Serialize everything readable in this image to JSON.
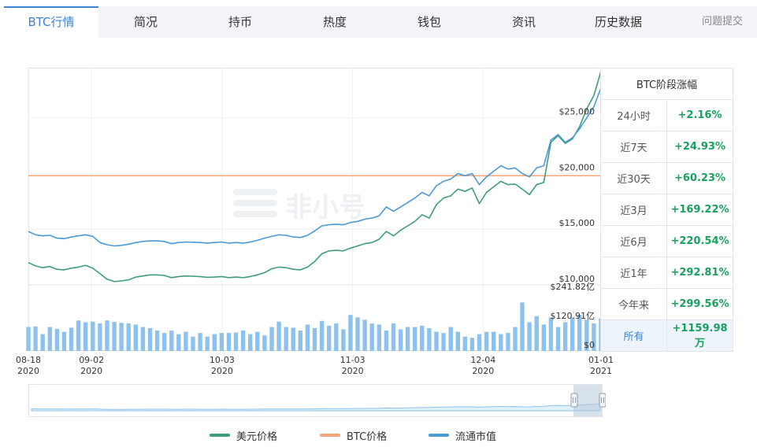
{
  "tabs": [
    {
      "label": "BTC行情",
      "active": true
    },
    {
      "label": "简况"
    },
    {
      "label": "持币"
    },
    {
      "label": "热度"
    },
    {
      "label": "钱包"
    },
    {
      "label": "资讯"
    },
    {
      "label": "历史数据"
    }
  ],
  "feedback_label": "问题提交",
  "watermark": "非小号",
  "performance": {
    "title": "BTC阶段涨幅",
    "rows": [
      {
        "period": "24小时",
        "change": "+2.16%"
      },
      {
        "period": "近7天",
        "change": "+24.93%"
      },
      {
        "period": "近30天",
        "change": "+60.23%"
      },
      {
        "period": "近3月",
        "change": "+169.22%"
      },
      {
        "period": "近6月",
        "change": "+220.54%"
      },
      {
        "period": "近1年",
        "change": "+292.81%"
      },
      {
        "period": "今年来",
        "change": "+299.56%"
      },
      {
        "period": "所有",
        "change": "+1159.98万",
        "selected": true
      }
    ],
    "change_color": "#19a15f"
  },
  "chart_data": {
    "type": "line",
    "x_tick_labels": [
      [
        "08-18",
        "2020"
      ],
      [
        "09-02",
        "2020"
      ],
      [
        "10-03",
        "2020"
      ],
      [
        "11-03",
        "2020"
      ],
      [
        "12-04",
        "2020"
      ],
      [
        "01-01",
        "2021"
      ]
    ],
    "x_tick_days": [
      0,
      15,
      46,
      77,
      108,
      136
    ],
    "y_ticks": [
      "$10,000",
      "$15,000",
      "$20,000",
      "$25,000"
    ],
    "y_tick_values": [
      10000,
      15000,
      20000,
      25000
    ],
    "ylim": [
      10000,
      29500
    ],
    "volume_ticks": [
      "$0",
      "$120.91亿",
      "$241.82亿"
    ],
    "volume_tick_values": [
      0,
      120.91,
      241.82
    ],
    "volume_ylim": [
      0,
      262
    ],
    "btc_price_ref": 19800,
    "series": [
      {
        "name": "美元价格",
        "color": "#3e9e7b",
        "values": [
          12000,
          11700,
          11550,
          11650,
          11400,
          11350,
          11500,
          11600,
          11750,
          11500,
          11000,
          10500,
          10300,
          10350,
          10450,
          10700,
          10800,
          10900,
          10900,
          10850,
          10650,
          10750,
          10800,
          10780,
          10750,
          10680,
          10700,
          10750,
          10650,
          10700,
          10650,
          10750,
          10900,
          11100,
          11450,
          11600,
          11550,
          11400,
          11350,
          11600,
          12100,
          12800,
          13050,
          13100,
          13050,
          13300,
          13500,
          13700,
          13800,
          14100,
          14800,
          14400,
          14900,
          15300,
          15700,
          16300,
          16000,
          17200,
          17800,
          18000,
          18600,
          18400,
          18700,
          17300,
          18300,
          18800,
          19300,
          19000,
          19050,
          18600,
          18100,
          19000,
          19200,
          22800,
          23400,
          22700,
          23100,
          24200,
          25800,
          27000,
          29200
        ]
      },
      {
        "name": "流通市值",
        "color": "#4b9ad8",
        "values": [
          14800,
          14500,
          14400,
          14450,
          14200,
          14150,
          14300,
          14400,
          14500,
          14350,
          13800,
          13600,
          13500,
          13550,
          13650,
          13800,
          13900,
          13950,
          13950,
          13900,
          13700,
          13800,
          13850,
          13830,
          13800,
          13750,
          13800,
          13850,
          13750,
          13800,
          13750,
          13850,
          14000,
          14200,
          14350,
          14500,
          14450,
          14300,
          14250,
          14450,
          14850,
          15300,
          15400,
          15450,
          15400,
          15600,
          15700,
          15900,
          16000,
          16200,
          17000,
          16600,
          17000,
          17400,
          17800,
          18300,
          18000,
          18900,
          19300,
          19500,
          20000,
          19800,
          20000,
          19000,
          19700,
          20200,
          20700,
          20400,
          20500,
          20000,
          19700,
          20500,
          20700,
          23000,
          23500,
          22800,
          23200,
          24000,
          25000,
          26000,
          27700
        ]
      }
    ],
    "volume": [
      100,
      102,
      70,
      100,
      92,
      80,
      97,
      127,
      120,
      122,
      115,
      127,
      121,
      117,
      115,
      110,
      100,
      95,
      85,
      75,
      85,
      70,
      80,
      60,
      75,
      60,
      70,
      75,
      75,
      77,
      85,
      70,
      80,
      65,
      100,
      122,
      100,
      97,
      85,
      110,
      95,
      125,
      105,
      115,
      90,
      150,
      140,
      130,
      115,
      110,
      85,
      115,
      90,
      100,
      100,
      105,
      95,
      80,
      75,
      100,
      80,
      60,
      55,
      70,
      80,
      80,
      70,
      75,
      100,
      202,
      120,
      145,
      110,
      140,
      100,
      120,
      140,
      150,
      130,
      115,
      136
    ],
    "legend": [
      "美元价格",
      "BTC价格",
      "流通市值"
    ],
    "legend_colors": [
      "#3e9e7b",
      "#f4a57a",
      "#4b9ad8"
    ],
    "btc_line_color": "#f4a57a",
    "volume_color": "#8ec2ee",
    "grid": true
  }
}
